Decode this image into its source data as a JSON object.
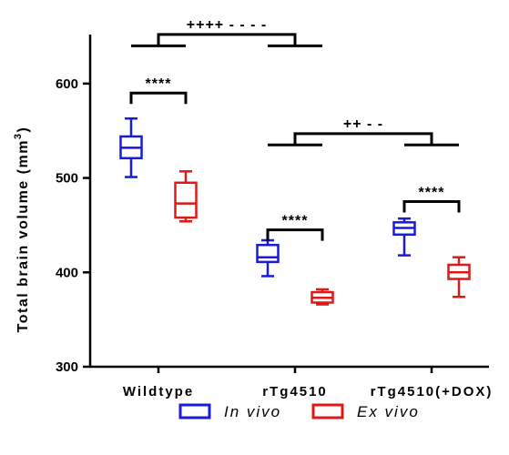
{
  "chart_data": {
    "type": "box",
    "ylabel_main": "Total brain volume (mm",
    "ylabel_sup": "3",
    "ylabel_close": ")",
    "ylim": [
      300,
      650
    ],
    "yticks": [
      300,
      400,
      500,
      600
    ],
    "categories": [
      "Wildtype",
      "rTg4510",
      "rTg4510(+DOX)"
    ],
    "series": [
      {
        "name": "In vivo",
        "color": "#1a1adb",
        "boxes": [
          {
            "min": 501,
            "q1": 521,
            "median": 532,
            "q3": 544,
            "max": 563
          },
          {
            "min": 396,
            "q1": 411,
            "median": 416,
            "q3": 429,
            "max": 434
          },
          {
            "min": 418,
            "q1": 440,
            "median": 447,
            "q3": 453,
            "max": 457
          }
        ]
      },
      {
        "name": "Ex vivo",
        "color": "#e01818",
        "boxes": [
          {
            "min": 454,
            "q1": 458,
            "median": 473,
            "q3": 495,
            "max": 507
          },
          {
            "min": 366,
            "q1": 368,
            "median": 373,
            "q3": 379,
            "max": 382
          },
          {
            "min": 374,
            "q1": 393,
            "median": 400,
            "q3": 408,
            "max": 416
          }
        ]
      }
    ],
    "annotations": [
      {
        "text": "****",
        "group": 0,
        "level": 590
      },
      {
        "text": "****",
        "group": 1,
        "level": 445
      },
      {
        "text": "****",
        "group": 2,
        "level": 475
      }
    ],
    "group_annotations": [
      {
        "text": "++++  - - - -",
        "from": 0,
        "to": 1,
        "bar_level": 640,
        "top_level": 652
      },
      {
        "text": "++  - -",
        "from": 1,
        "to": 2,
        "bar_level": 535,
        "top_level": 547
      }
    ],
    "legend": {
      "placement": "bottom"
    }
  }
}
